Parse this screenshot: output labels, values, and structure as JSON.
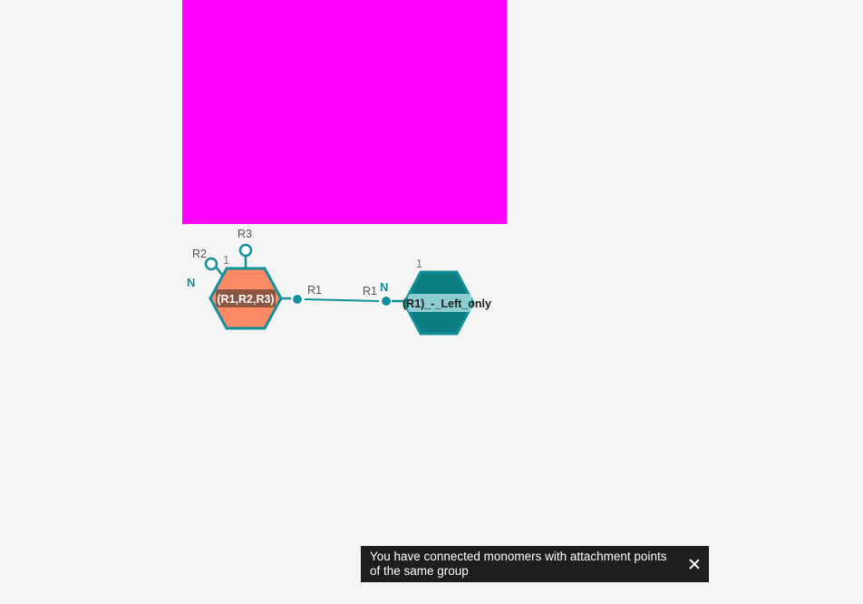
{
  "colors": {
    "background": "#f5f5f5",
    "magenta": "#ff00ff",
    "teal": "#13919b",
    "teal_dark": "#0a7c82",
    "orange_fill": "#ff8a66",
    "label_bg_orange": "#7a4a3e",
    "label_bg_teal": "#8ccdd1",
    "toast_bg": "#1e1e1e"
  },
  "monomer_left": {
    "name": "(R1,R2,R3)",
    "index": "1",
    "terminal_label": "N",
    "attachment_points": [
      "R1",
      "R2",
      "R3"
    ]
  },
  "monomer_right": {
    "name": "(R1)_-_Left_only",
    "index": "1",
    "terminal_label": "N",
    "attachment_point": "R1"
  },
  "bond": {
    "left_label": "R1",
    "right_label": "R1"
  },
  "toast": {
    "message": "You have connected monomers with attachment points of the same group",
    "close_icon": "close-icon"
  }
}
